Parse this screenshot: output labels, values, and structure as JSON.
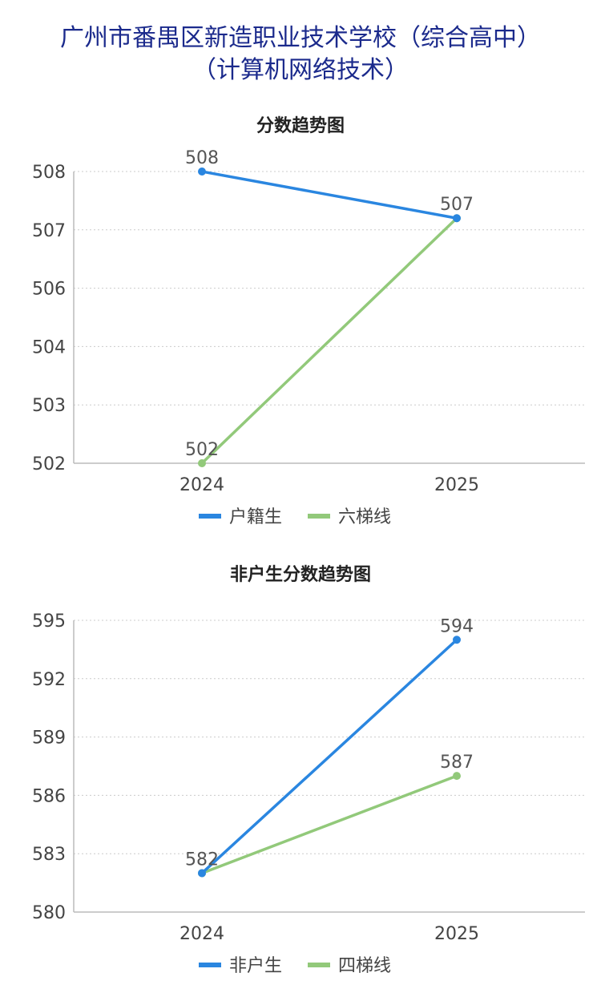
{
  "page": {
    "title_line1": "广州市番禺区新造职业技术学校（综合高中）",
    "title_line2": "（计算机网络技术）"
  },
  "chart_data": [
    {
      "type": "line",
      "title": "分数趋势图",
      "categories": [
        "2024",
        "2025"
      ],
      "y_ticks": [
        502,
        503,
        504,
        506,
        507,
        508
      ],
      "y_tick_labels": [
        "502",
        "503",
        "504",
        "506",
        "507",
        "508"
      ],
      "grid": true,
      "legend_position": "bottom",
      "series": [
        {
          "name": "户籍生",
          "color": "#2a86e0",
          "values": [
            508,
            507.2
          ],
          "labels": [
            "508",
            "507"
          ]
        },
        {
          "name": "六梯线",
          "color": "#92c97a",
          "values": [
            502,
            507.2
          ],
          "labels": [
            "502",
            ""
          ]
        }
      ]
    },
    {
      "type": "line",
      "title": "非户生分数趋势图",
      "categories": [
        "2024",
        "2025"
      ],
      "y_ticks": [
        580,
        583,
        586,
        589,
        592,
        595
      ],
      "y_tick_labels": [
        "580",
        "583",
        "586",
        "589",
        "592",
        "595"
      ],
      "grid": true,
      "legend_position": "bottom",
      "series": [
        {
          "name": "非户生",
          "color": "#2a86e0",
          "values": [
            582,
            594
          ],
          "labels": [
            "582",
            "594"
          ]
        },
        {
          "name": "四梯线",
          "color": "#92c97a",
          "values": [
            582,
            587
          ],
          "labels": [
            "",
            "587"
          ]
        }
      ]
    }
  ]
}
